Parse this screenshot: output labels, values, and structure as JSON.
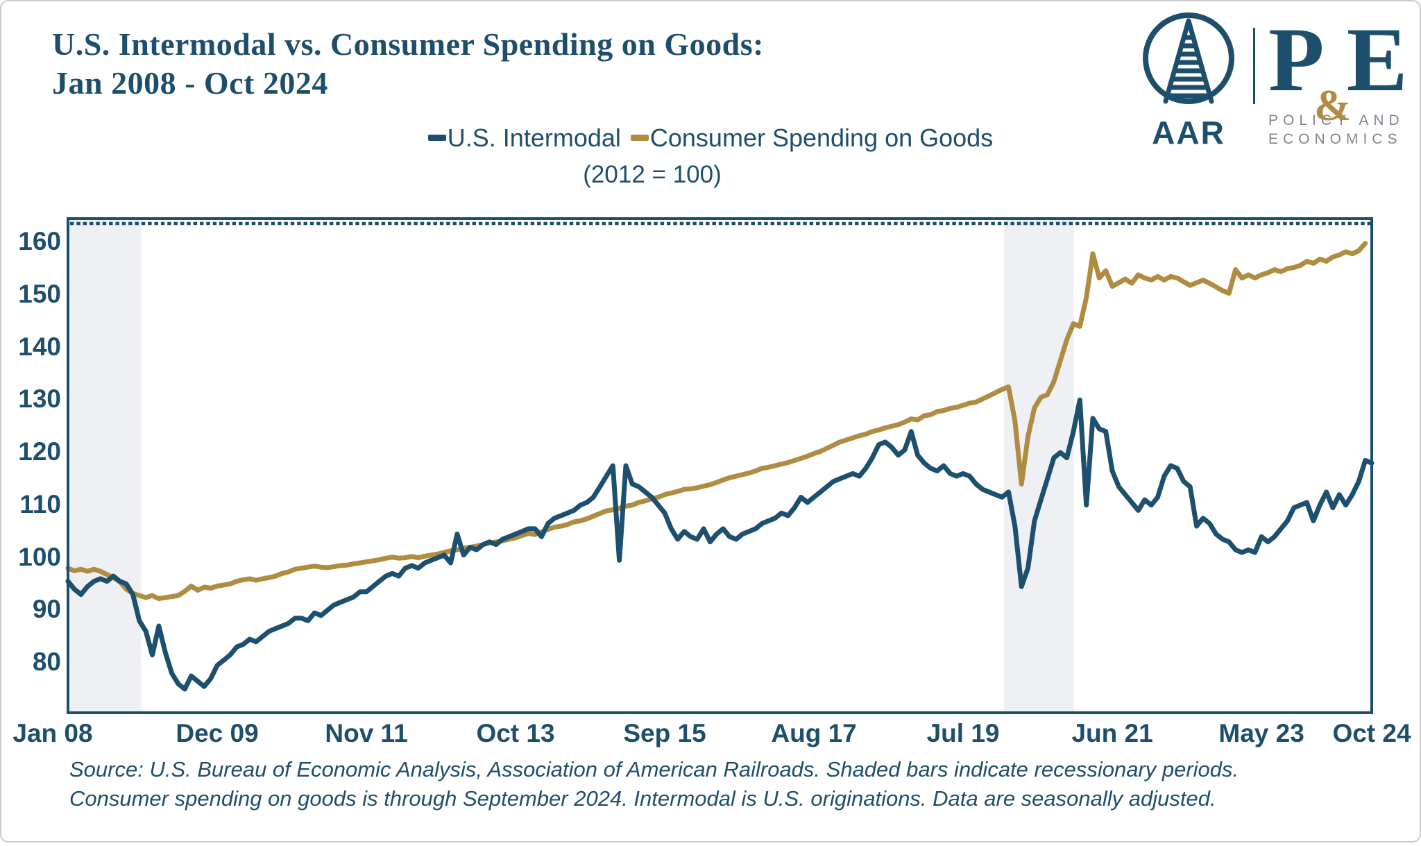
{
  "header": {
    "title_line1": "U.S. Intermodal vs. Consumer Spending on Goods:",
    "title_line2": "Jan 2008 - Oct 2024",
    "logo": {
      "aar_label": "AAR",
      "pe_p": "P",
      "pe_amp": "&",
      "pe_e": "E",
      "pe_sub_line1": "POLICY AND",
      "pe_sub_line2": "ECONOMICS"
    }
  },
  "legend": {
    "series1_label": "U.S. Intermodal",
    "series2_label": "Consumer Spending on Goods",
    "index_note": "(2012 = 100)"
  },
  "footer": {
    "source_line1": "Source: U.S. Bureau of Economic Analysis, Association of American Railroads. Shaded bars indicate recessionary periods.",
    "source_line2": "Consumer spending on goods is through September 2024. Intermodal is U.S. originations. Data are seasonally adjusted."
  },
  "colors": {
    "navy": "#1d4f6e",
    "gold": "#b08c42",
    "recession_shade": "#eef0f4",
    "plot_border": "#1d4e6b"
  },
  "chart_data": {
    "type": "line",
    "title": "U.S. Intermodal vs. Consumer Spending on Goods: Jan 2008 - Oct 2024",
    "index_note": "2012 = 100",
    "x_start_month": "2008-01",
    "x_months_total": 202,
    "y_ticks": [
      80,
      90,
      100,
      110,
      120,
      130,
      140,
      150,
      160
    ],
    "ylim_drawn": [
      70.5,
      164.5
    ],
    "grid": "off",
    "legend_position": "top-center",
    "x_ticks": [
      {
        "label": "Jan 08",
        "month": 0,
        "dx": -22
      },
      {
        "label": "Dec 09",
        "month": 23,
        "dx": 0
      },
      {
        "label": "Nov 11",
        "month": 46,
        "dx": 0
      },
      {
        "label": "Oct 13",
        "month": 69,
        "dx": 0
      },
      {
        "label": "Sep 15",
        "month": 92,
        "dx": 0
      },
      {
        "label": "Aug 17",
        "month": 115,
        "dx": 0
      },
      {
        "label": "Jul 19",
        "month": 138,
        "dx": 0
      },
      {
        "label": "Jun 21",
        "month": 161,
        "dx": 0
      },
      {
        "label": "May 23",
        "month": 184,
        "dx": 0
      },
      {
        "label": "Oct 24",
        "month": 201,
        "dx": 0
      }
    ],
    "recession_bands_months": [
      [
        0,
        11.3
      ],
      [
        144.3,
        155.1
      ]
    ],
    "series": [
      {
        "name": "Consumer Spending on Goods",
        "color": "#b08c42",
        "start": "2008-01",
        "end": "2024-09",
        "monthly_values": [
          98,
          97.5,
          97.8,
          97.4,
          97.8,
          97.4,
          96.8,
          96.2,
          95.4,
          94,
          93.2,
          92.8,
          92.4,
          92.8,
          92.2,
          92.4,
          92.6,
          92.8,
          93.6,
          94.6,
          93.8,
          94.4,
          94.2,
          94.6,
          94.8,
          95,
          95.5,
          95.8,
          96,
          95.7,
          96,
          96.2,
          96.5,
          97,
          97.3,
          97.8,
          98,
          98.2,
          98.4,
          98.2,
          98.1,
          98.3,
          98.5,
          98.6,
          98.8,
          99,
          99.2,
          99.4,
          99.6,
          99.9,
          100.1,
          99.9,
          100,
          100.2,
          100,
          100.3,
          100.5,
          100.7,
          101,
          101.3,
          101.5,
          101.8,
          102,
          102.2,
          102.5,
          102.8,
          103,
          103.2,
          103.5,
          103.8,
          104.2,
          104.6,
          104.4,
          104.9,
          105.4,
          105.8,
          106,
          106.3,
          106.8,
          107,
          107.4,
          107.9,
          108.4,
          108.9,
          109.1,
          109.4,
          109.8,
          110,
          110.5,
          110.8,
          111.2,
          111.5,
          112,
          112.3,
          112.6,
          113,
          113.1,
          113.3,
          113.6,
          113.9,
          114.3,
          114.8,
          115.2,
          115.5,
          115.8,
          116.1,
          116.5,
          117,
          117.2,
          117.5,
          117.8,
          118.1,
          118.5,
          118.9,
          119.3,
          119.8,
          120.2,
          120.8,
          121.4,
          122,
          122.4,
          122.8,
          123.2,
          123.5,
          124,
          124.3,
          124.7,
          125,
          125.3,
          125.8,
          126.4,
          126.2,
          127,
          127.2,
          127.8,
          128,
          128.4,
          128.6,
          129,
          129.4,
          129.6,
          130.2,
          130.8,
          131.4,
          132,
          132.5,
          126,
          114,
          123,
          128.5,
          130.5,
          131,
          133.5,
          137.5,
          141.5,
          144.5,
          144,
          149.5,
          157.8,
          153.2,
          154.6,
          151.6,
          152.3,
          153,
          152.2,
          153.8,
          153.2,
          152.8,
          153.5,
          152.8,
          153.5,
          153.2,
          152.5,
          151.8,
          152.3,
          152.8,
          152.2,
          151.5,
          150.8,
          150.3,
          154.8,
          153.2,
          153.8,
          153.2,
          153.8,
          154.2,
          154.8,
          154.4,
          155,
          155.2,
          155.6,
          156.4,
          156,
          156.8,
          156.4,
          157.2,
          157.6,
          158.2,
          157.8,
          158.4,
          159.8
        ]
      },
      {
        "name": "U.S. Intermodal",
        "color": "#1d4f6e",
        "start": "2008-01",
        "end": "2024-10",
        "monthly_values": [
          95.5,
          94,
          93,
          94.5,
          95.5,
          96,
          95.5,
          96.5,
          95.5,
          95,
          93,
          88,
          86,
          81.5,
          87,
          82,
          78,
          76,
          75,
          77.5,
          76.5,
          75.5,
          77,
          79.5,
          80.5,
          81.5,
          83,
          83.5,
          84.5,
          84,
          85,
          86,
          86.5,
          87,
          87.5,
          88.5,
          88.5,
          88,
          89.5,
          89,
          90,
          91,
          91.5,
          92,
          92.5,
          93.5,
          93.5,
          94.5,
          95.5,
          96.5,
          97,
          96.5,
          98,
          98.5,
          98,
          99,
          99.5,
          100,
          100.5,
          99,
          104.5,
          100.5,
          102,
          101.5,
          102.5,
          103,
          102.5,
          103.5,
          104,
          104.5,
          105,
          105.5,
          105.5,
          104,
          106.5,
          107.5,
          108,
          108.5,
          109,
          110,
          110.5,
          111.5,
          113.5,
          115.5,
          117.5,
          99.5,
          117.5,
          114,
          113.5,
          112.5,
          111.5,
          110,
          108.5,
          105.5,
          103.5,
          105,
          104,
          103.5,
          105.5,
          103,
          104.5,
          105.5,
          104,
          103.5,
          104.5,
          105,
          105.5,
          106.5,
          107,
          107.5,
          108.5,
          108,
          109.5,
          111.5,
          110.5,
          111.5,
          112.5,
          113.5,
          114.5,
          115,
          115.5,
          116,
          115.5,
          117,
          119,
          121.5,
          122,
          121,
          119.5,
          120.5,
          124,
          119.5,
          118,
          117,
          116.5,
          117.5,
          116,
          115.5,
          116,
          115.5,
          114,
          113,
          112.5,
          112,
          111.5,
          112.5,
          106,
          94.5,
          98,
          107,
          111,
          115,
          119,
          120,
          119,
          124,
          130,
          110,
          126.5,
          124.5,
          124,
          116.5,
          113.5,
          112,
          110.5,
          109,
          111,
          110,
          111.5,
          115.5,
          117.5,
          117,
          114.5,
          113.5,
          106,
          107.5,
          106.5,
          104.5,
          103.5,
          103,
          101.5,
          101,
          101.5,
          101,
          104,
          103,
          104,
          105.5,
          107,
          109.5,
          110,
          110.5,
          107,
          110,
          112.5,
          109.5,
          112,
          110,
          112,
          114.5,
          118.5,
          118
        ]
      }
    ]
  }
}
